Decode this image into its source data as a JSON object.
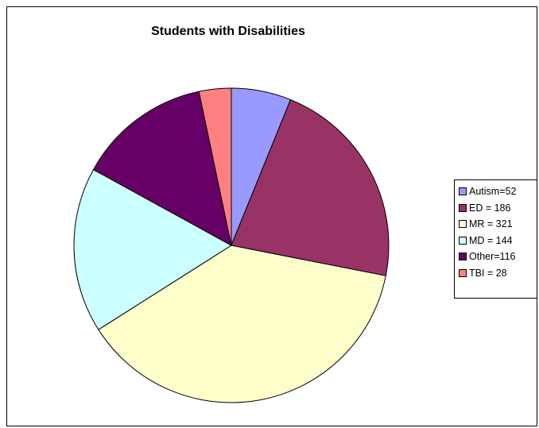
{
  "chart_data": {
    "type": "pie",
    "title": "Students with Disabilities",
    "categories": [
      "Autism",
      "ED",
      "MR",
      "MD",
      "Other",
      "TBI"
    ],
    "values": [
      52,
      186,
      321,
      144,
      116,
      28
    ],
    "legend": {
      "placement": "right",
      "labels": [
        "Autism=52",
        "ED = 186",
        "MR = 321",
        "MD = 144",
        "Other=116",
        "TBI = 28"
      ]
    },
    "colors": [
      "#9999ff",
      "#993366",
      "#ffffcc",
      "#ccffff",
      "#660066",
      "#ff8080"
    ]
  }
}
